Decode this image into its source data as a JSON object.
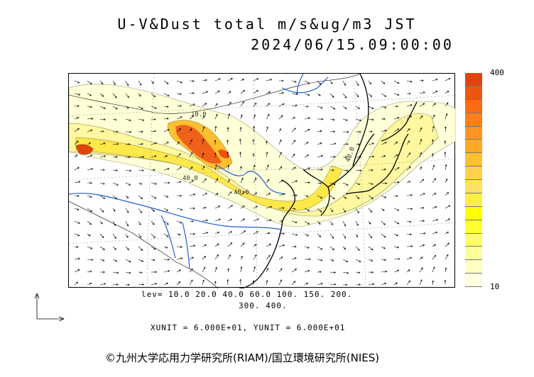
{
  "header": {
    "title_line1": "U-V&Dust total m/s&ug/m3 JST",
    "title_line2": "2024/06/15.09:00:00"
  },
  "map": {
    "contour_labels": [
      "10.0",
      "40.0",
      "40.0",
      "40.0"
    ],
    "land_color": "#ffffff",
    "river_color": "#1e5fd6",
    "coast_color": "#000000"
  },
  "colorbar": {
    "max_label": "400",
    "min_label": "10",
    "colors": [
      "#ffffe0",
      "#ffffc0",
      "#ffff99",
      "#ffff66",
      "#ffff33",
      "#ffff00",
      "#ffee44",
      "#ffe066",
      "#ffd24a",
      "#ffc030",
      "#ffaa22",
      "#ff9520",
      "#ff7f1a",
      "#f96a14",
      "#ee5510",
      "#e0460c"
    ]
  },
  "legend": {
    "lev_line1": "lev= 10.0 20.0 40.0 60.0 100. 150. 200.",
    "lev_line2": "300. 400.",
    "units": "XUNIT = 6.000E+01, YUNIT = 6.000E+01"
  },
  "footer": {
    "credit": "©九州大学応用力学研究所(RIAM)/国立環境研究所(NIES)"
  }
}
